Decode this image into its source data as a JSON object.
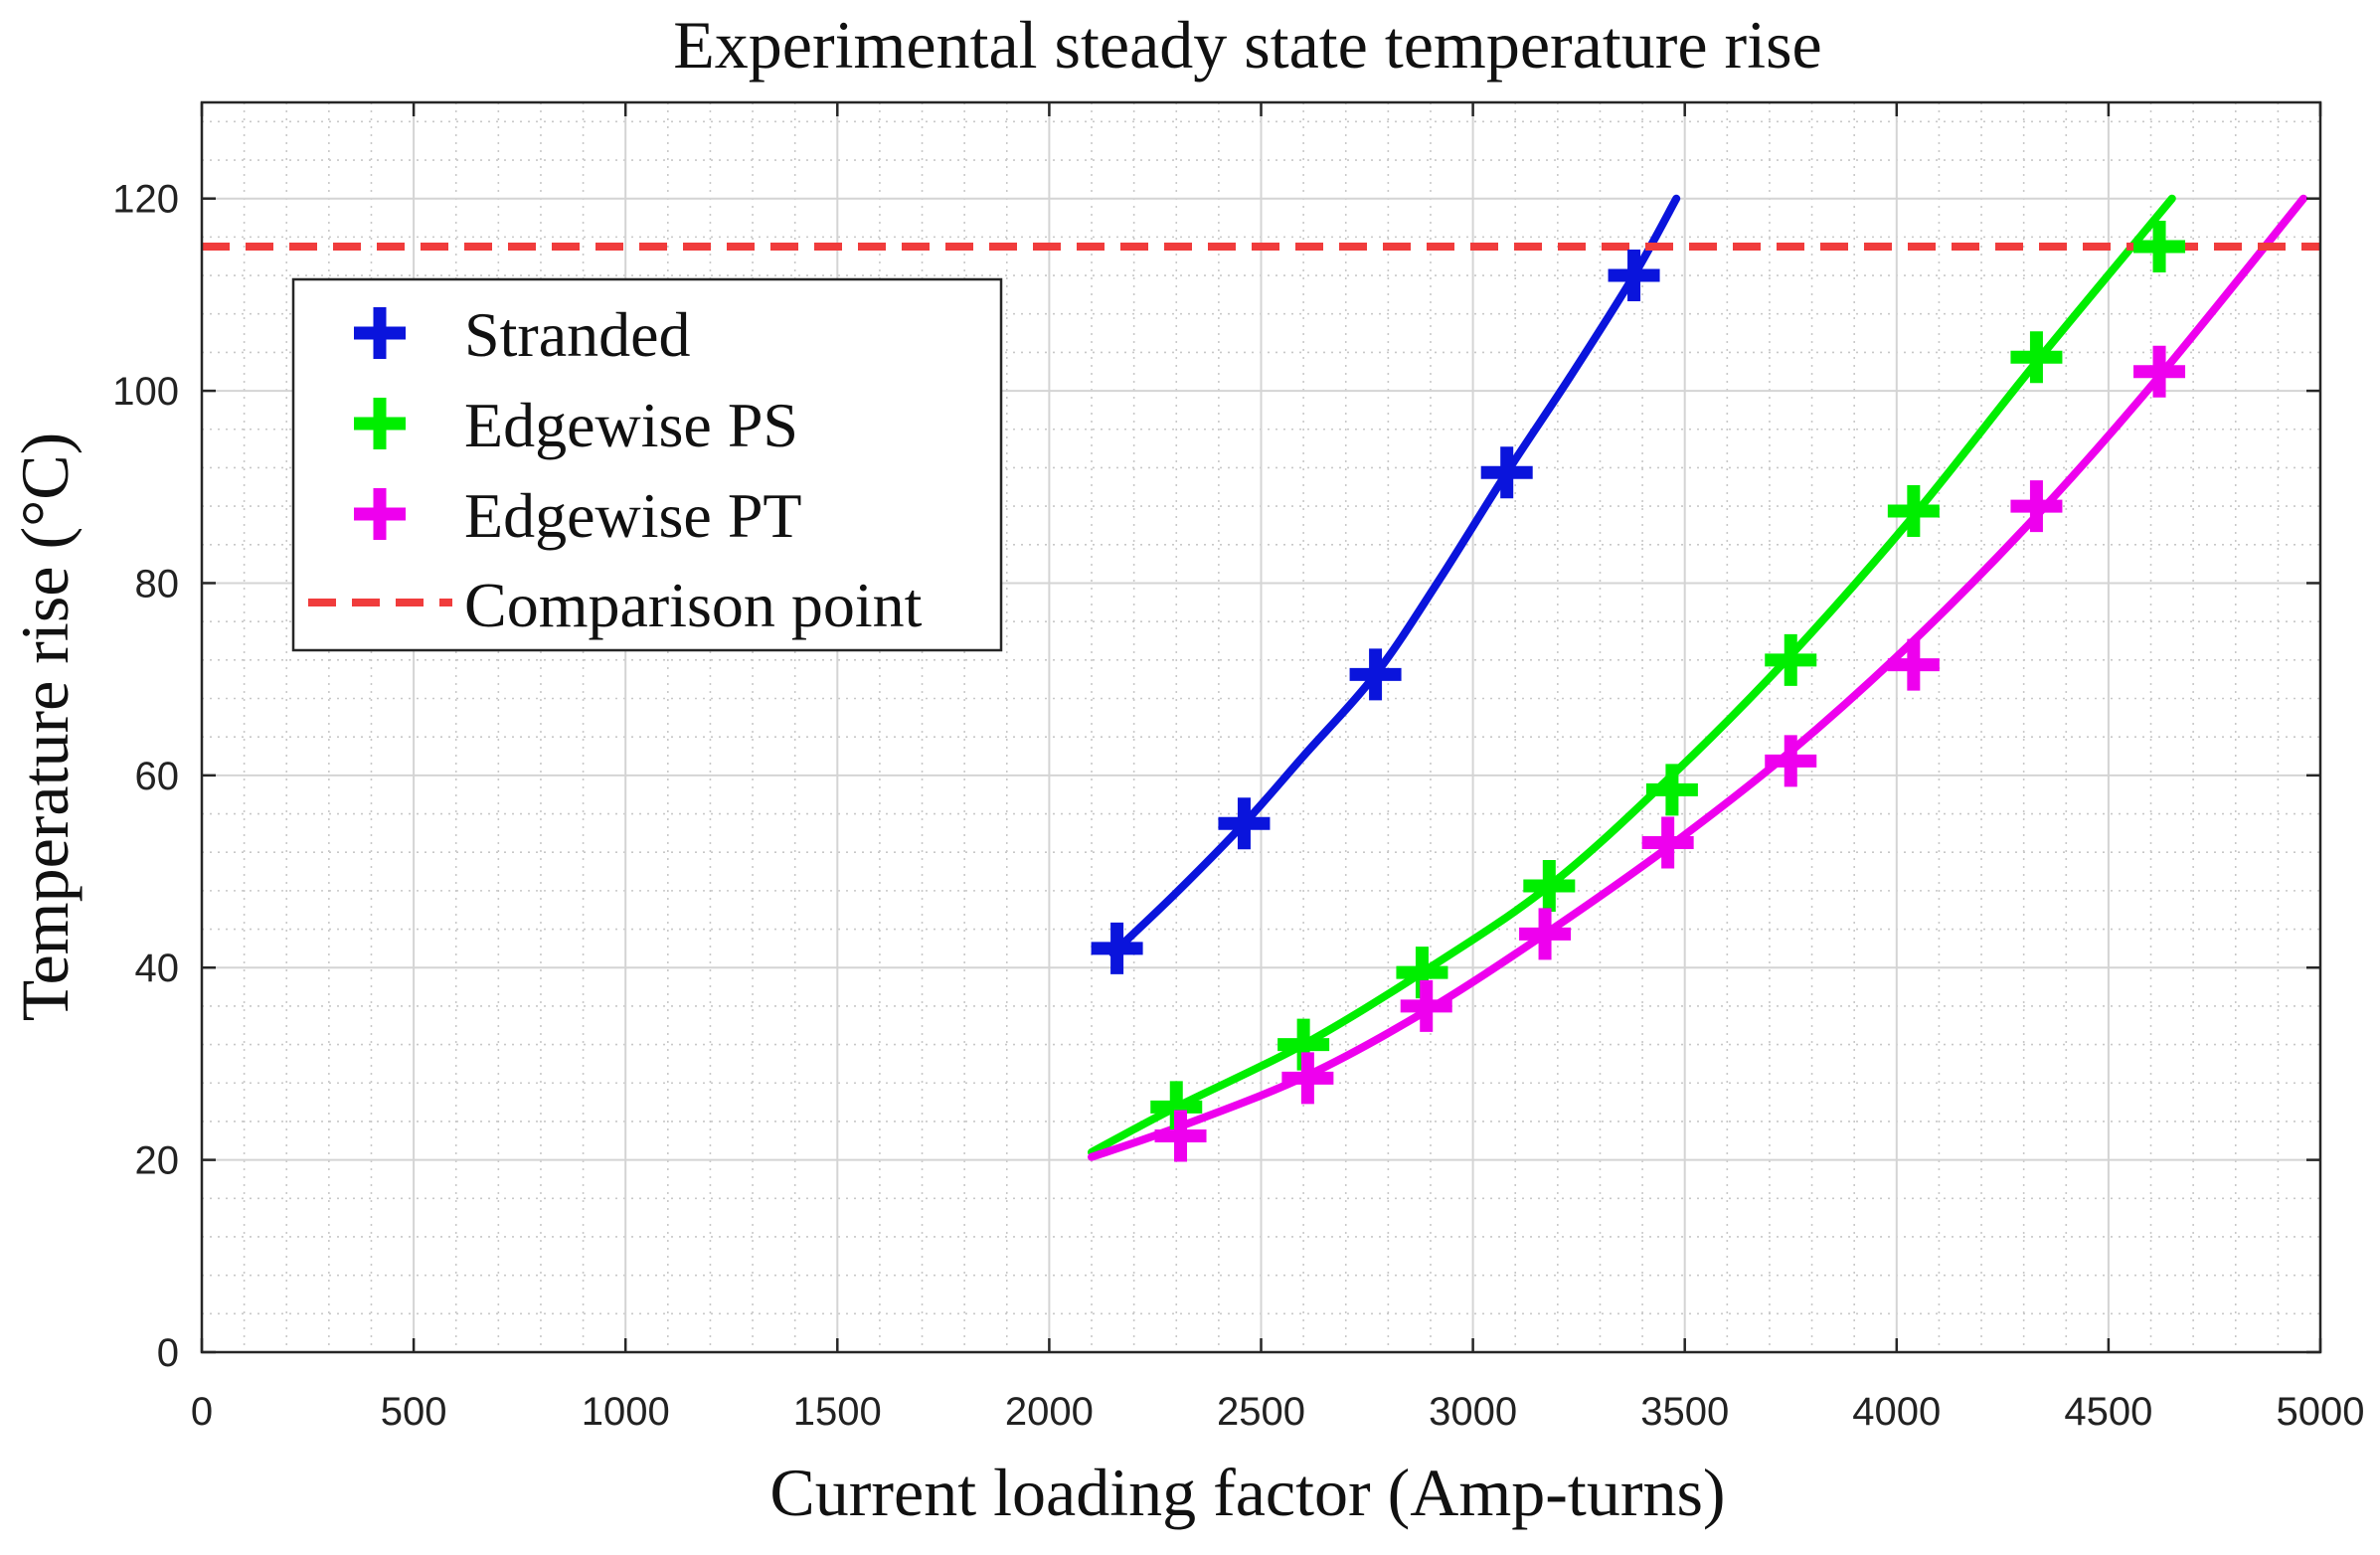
{
  "chart_data": {
    "type": "line",
    "title": "Experimental steady state temperature rise",
    "xlabel": "Current loading factor (Amp-turns)",
    "ylabel": "Temperature rise (°C)",
    "xlim": [
      0,
      5000
    ],
    "ylim": [
      0,
      130
    ],
    "x_ticks": [
      0,
      500,
      1000,
      1500,
      2000,
      2500,
      3000,
      3500,
      4000,
      4500,
      5000
    ],
    "y_ticks": [
      0,
      20,
      40,
      60,
      80,
      100,
      120
    ],
    "x_tick_labels": [
      "0",
      "500",
      "1000",
      "1500",
      "2000",
      "2500",
      "3000",
      "3500",
      "4000",
      "4500",
      "5000"
    ],
    "y_tick_labels": [
      "0",
      "20",
      "40",
      "60",
      "80",
      "100",
      "120"
    ],
    "grid": true,
    "minor_grid": true,
    "legend_position": "top-left",
    "series": [
      {
        "name": "Stranded",
        "color": "#0a14dc",
        "marker": "plus",
        "points": [
          [
            2160,
            42
          ],
          [
            2460,
            55
          ],
          [
            2770,
            70.5
          ],
          [
            3080,
            91.5
          ],
          [
            3380,
            112
          ]
        ],
        "fit": [
          [
            2150,
            41.5
          ],
          [
            2300,
            47.8
          ],
          [
            2460,
            55
          ],
          [
            2600,
            62
          ],
          [
            2770,
            70.5
          ],
          [
            2920,
            80.3
          ],
          [
            3080,
            91.5
          ],
          [
            3230,
            101.5
          ],
          [
            3380,
            112
          ],
          [
            3480,
            120
          ]
        ]
      },
      {
        "name": "Edgewise PS",
        "color": "#00ee00",
        "marker": "plus",
        "points": [
          [
            2300,
            25.5
          ],
          [
            2600,
            32
          ],
          [
            2880,
            39.5
          ],
          [
            3180,
            48.5
          ],
          [
            3470,
            58.5
          ],
          [
            3750,
            72
          ],
          [
            4040,
            87.5
          ],
          [
            4330,
            103.5
          ],
          [
            4620,
            115
          ]
        ],
        "fit": [
          [
            2100,
            20.8
          ],
          [
            2300,
            25.5
          ],
          [
            2600,
            32
          ],
          [
            2880,
            39.5
          ],
          [
            3180,
            48.5
          ],
          [
            3470,
            60
          ],
          [
            3750,
            72.5
          ],
          [
            4040,
            87
          ],
          [
            4330,
            103
          ],
          [
            4650,
            120
          ]
        ]
      },
      {
        "name": "Edgewise PT",
        "color": "#ee00ee",
        "marker": "plus",
        "points": [
          [
            2310,
            22.5
          ],
          [
            2610,
            28.5
          ],
          [
            2890,
            36
          ],
          [
            3170,
            43.5
          ],
          [
            3460,
            53
          ],
          [
            3750,
            61.5
          ],
          [
            4040,
            71.5
          ],
          [
            4330,
            88
          ],
          [
            4620,
            102
          ]
        ],
        "fit": [
          [
            2100,
            20.3
          ],
          [
            2310,
            23.5
          ],
          [
            2610,
            28.8
          ],
          [
            2890,
            35.5
          ],
          [
            3170,
            43.5
          ],
          [
            3460,
            52.5
          ],
          [
            3750,
            62.5
          ],
          [
            4040,
            74
          ],
          [
            4330,
            87
          ],
          [
            4620,
            101.5
          ],
          [
            4960,
            120
          ]
        ]
      }
    ],
    "reference_line": {
      "name": "Comparison point",
      "y": 115,
      "color": "#f03c3c",
      "style": "dashed"
    }
  }
}
